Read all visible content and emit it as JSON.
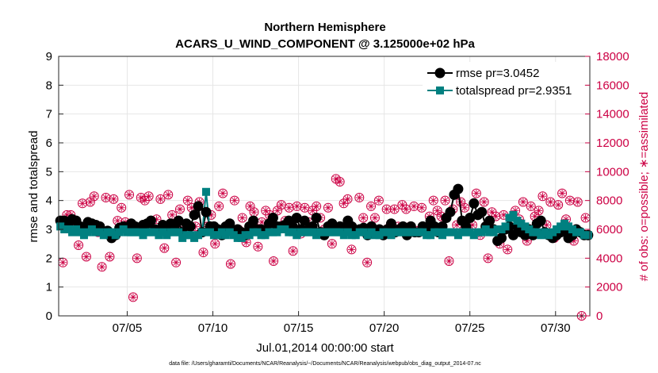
{
  "chart_data": {
    "type": "line",
    "title_line1": "Northern Hemisphere",
    "title_line2": "ACARS_U_WIND_COMPONENT @ 3.125000e+02 hPa",
    "xlabel": "Jul.01,2014 00:00:00 start",
    "ylabel_left": "rmse and totalspread",
    "ylabel_right": "# of obs: o=possible; ∗=assimilated",
    "footnote": "data file: /Users/gharamti/Documents/NCAR/Reanalysis/~/Documents/NCAR/Reanalysis/webpub/obs_diag_output_2014-07.nc",
    "xlim": [
      1.0,
      32.0
    ],
    "ylim_left": [
      0,
      9
    ],
    "ylim_right": [
      0,
      18000
    ],
    "x_ticks": [
      5,
      10,
      15,
      20,
      25,
      30
    ],
    "x_tick_labels": [
      "07/05",
      "07/10",
      "07/15",
      "07/20",
      "07/25",
      "07/30"
    ],
    "y_ticks_left": [
      "0",
      "1",
      "2",
      "3",
      "4",
      "5",
      "6",
      "7",
      "8",
      "9"
    ],
    "y_ticks_right": [
      "0",
      "2000",
      "4000",
      "6000",
      "8000",
      "10000",
      "12000",
      "14000",
      "16000",
      "18000"
    ],
    "grid": true,
    "legend_position": "top-right",
    "series": [
      {
        "name": "rmse",
        "label": "rmse pr=3.0452",
        "color": "#000000",
        "marker": "circle",
        "values": [
          3.3,
          3.3,
          3.2,
          3.35,
          3.3,
          3.1,
          3.0,
          3.25,
          3.2,
          3.15,
          3.1,
          2.9,
          2.95,
          2.7,
          2.8,
          3.05,
          3.1,
          3.05,
          3.2,
          3.1,
          3.05,
          3.15,
          3.2,
          3.3,
          3.0,
          2.9,
          3.15,
          3.1,
          3.2,
          3.1,
          3.3,
          2.9,
          3.2,
          3.1,
          3.5,
          3.8,
          2.9,
          3.6,
          3.1,
          3.1,
          3.0,
          2.8,
          3.1,
          3.2,
          2.9,
          3.0,
          2.9,
          2.8,
          3.1,
          3.3,
          3.0,
          3.0,
          2.9,
          3.2,
          3.4,
          3.1,
          3.1,
          3.15,
          3.3,
          3.1,
          3.4,
          3.0,
          3.3,
          3.0,
          3.1,
          3.4,
          2.9,
          2.8,
          3.1,
          3.2,
          3.0,
          3.1,
          3.0,
          3.3,
          3.1,
          2.9,
          3.0,
          3.05,
          2.8,
          3.1,
          2.9,
          3.0,
          2.8,
          3.0,
          3.2,
          2.9,
          3.0,
          3.1,
          2.8,
          3.1,
          2.9,
          2.9,
          3.1,
          3.0,
          3.3,
          3.1,
          2.9,
          3.1,
          3.4,
          3.6,
          4.2,
          4.4,
          3.3,
          3.1,
          3.4,
          3.9,
          3.5,
          3.6,
          3.1,
          3.3,
          3.0,
          2.6,
          2.7,
          3.0,
          3.1,
          2.8,
          3.1,
          2.9,
          2.8,
          3.0,
          2.8,
          3.2,
          3.3,
          2.9,
          2.8,
          2.7,
          2.8,
          2.9,
          3.0,
          2.7,
          2.8,
          3.0,
          2.9,
          2.8,
          2.8
        ]
      },
      {
        "name": "totalspread",
        "label": "totalspread pr=2.9351",
        "color": "#008080",
        "marker": "square",
        "values": [
          3.1,
          3.0,
          3.0,
          2.9,
          3.0,
          2.9,
          2.8,
          2.9,
          3.0,
          2.9,
          2.9,
          2.8,
          2.9,
          2.9,
          2.8,
          2.9,
          3.0,
          2.9,
          2.9,
          2.9,
          2.9,
          2.8,
          2.9,
          2.9,
          2.9,
          2.8,
          2.9,
          2.8,
          2.9,
          2.9,
          2.9,
          2.7,
          2.8,
          2.8,
          2.7,
          2.8,
          2.9,
          4.3,
          2.9,
          2.8,
          2.8,
          2.9,
          2.8,
          2.9,
          2.8,
          2.7,
          2.7,
          2.8,
          2.8,
          2.9,
          2.9,
          2.8,
          2.8,
          2.9,
          2.9,
          2.9,
          3.0,
          3.0,
          2.9,
          2.9,
          2.8,
          2.9,
          2.9,
          2.9,
          2.9,
          2.8,
          2.9,
          2.9,
          2.9,
          2.9,
          2.9,
          2.9,
          2.8,
          2.9,
          2.8,
          2.8,
          2.9,
          2.9,
          2.8,
          2.9,
          2.8,
          2.8,
          2.9,
          2.9,
          2.8,
          2.9,
          2.9,
          2.9,
          2.9,
          2.9,
          2.9,
          2.9,
          2.9,
          2.8,
          2.8,
          2.9,
          2.9,
          2.8,
          2.9,
          2.9,
          2.9,
          2.8,
          2.9,
          2.9,
          2.9,
          2.8,
          2.9,
          2.9,
          3.0,
          2.9,
          2.9,
          3.0,
          3.0,
          3.1,
          3.4,
          3.5,
          3.3,
          3.2,
          3.1,
          3.0,
          2.9,
          2.9,
          2.8,
          2.9,
          2.8,
          2.9,
          3.0,
          3.1,
          3.2,
          3.1,
          3.0,
          2.9,
          2.9,
          2.8,
          2.8
        ]
      },
      {
        "name": "obs_possible",
        "label": "possible",
        "color": "#cc0044",
        "marker": "circle-open",
        "values": [
          3700,
          7000,
          7000,
          6400,
          4900,
          7800,
          4100,
          7900,
          8300,
          5800,
          3400,
          8200,
          4100,
          8100,
          6600,
          7500,
          6500,
          8400,
          1300,
          4000,
          8200,
          8000,
          8300,
          6000,
          6700,
          8100,
          4700,
          8400,
          7000,
          3700,
          7400,
          6300,
          8000,
          7500,
          6200,
          7900,
          4400,
          6200,
          7000,
          5000,
          7600,
          8500,
          6200,
          3600,
          8000,
          6000,
          6800,
          5100,
          7600,
          7200,
          4800,
          6500,
          7300,
          7000,
          3800,
          7300,
          7700,
          6600,
          7500,
          4500,
          7600,
          5700,
          7500,
          6500,
          7300,
          7600,
          6800,
          6000,
          7500,
          5000,
          9500,
          9300,
          7800,
          8100,
          4600,
          5700,
          8200,
          6800,
          3700,
          7600,
          6800,
          8000,
          5600,
          7400,
          6300,
          7400,
          6200,
          7700,
          7400,
          6200,
          7600,
          5900,
          7500,
          5800,
          6900,
          8000,
          7300,
          6900,
          8000,
          3800,
          7400,
          6300,
          7900,
          7500,
          5900,
          6300,
          8500,
          5600,
          7900,
          4000,
          7200,
          6900,
          5000,
          7000,
          4600,
          6000,
          7300,
          6700,
          7900,
          5200,
          7600,
          6900,
          7300,
          8300,
          6300,
          7900,
          5400,
          7700,
          8500,
          6700,
          8000,
          5200,
          7900,
          0,
          6800
        ]
      },
      {
        "name": "obs_assimilated",
        "label": "assimilated",
        "color": "#cc0044",
        "marker": "asterisk",
        "values": [
          3700,
          7000,
          7000,
          6400,
          4900,
          7800,
          4100,
          7900,
          8300,
          5800,
          3400,
          8200,
          4100,
          8100,
          6600,
          7500,
          6500,
          8400,
          1300,
          4000,
          8200,
          8000,
          8300,
          6000,
          6700,
          8100,
          4700,
          8400,
          7000,
          3700,
          7400,
          6300,
          8000,
          7500,
          6200,
          7900,
          4400,
          6200,
          7000,
          5000,
          7600,
          8500,
          6200,
          3600,
          8000,
          6000,
          6800,
          5100,
          7600,
          7200,
          4800,
          6500,
          7300,
          7000,
          3800,
          7300,
          7700,
          6600,
          7500,
          4500,
          7600,
          5700,
          7500,
          6500,
          7300,
          7600,
          6800,
          6000,
          7500,
          5000,
          9500,
          9300,
          7800,
          8100,
          4600,
          5700,
          8200,
          6800,
          3700,
          7600,
          6800,
          8000,
          5600,
          7400,
          6300,
          7400,
          6200,
          7700,
          7400,
          6200,
          7600,
          5900,
          7500,
          5800,
          6900,
          8000,
          7300,
          6900,
          8000,
          3800,
          7400,
          6300,
          7900,
          7500,
          5900,
          6300,
          8500,
          5600,
          7900,
          4000,
          7200,
          6900,
          5000,
          7000,
          4600,
          6000,
          7300,
          6700,
          7900,
          5200,
          7600,
          6900,
          7300,
          8300,
          6300,
          7900,
          5400,
          7700,
          8500,
          6700,
          8000,
          5200,
          7900,
          0,
          6800
        ]
      }
    ]
  }
}
